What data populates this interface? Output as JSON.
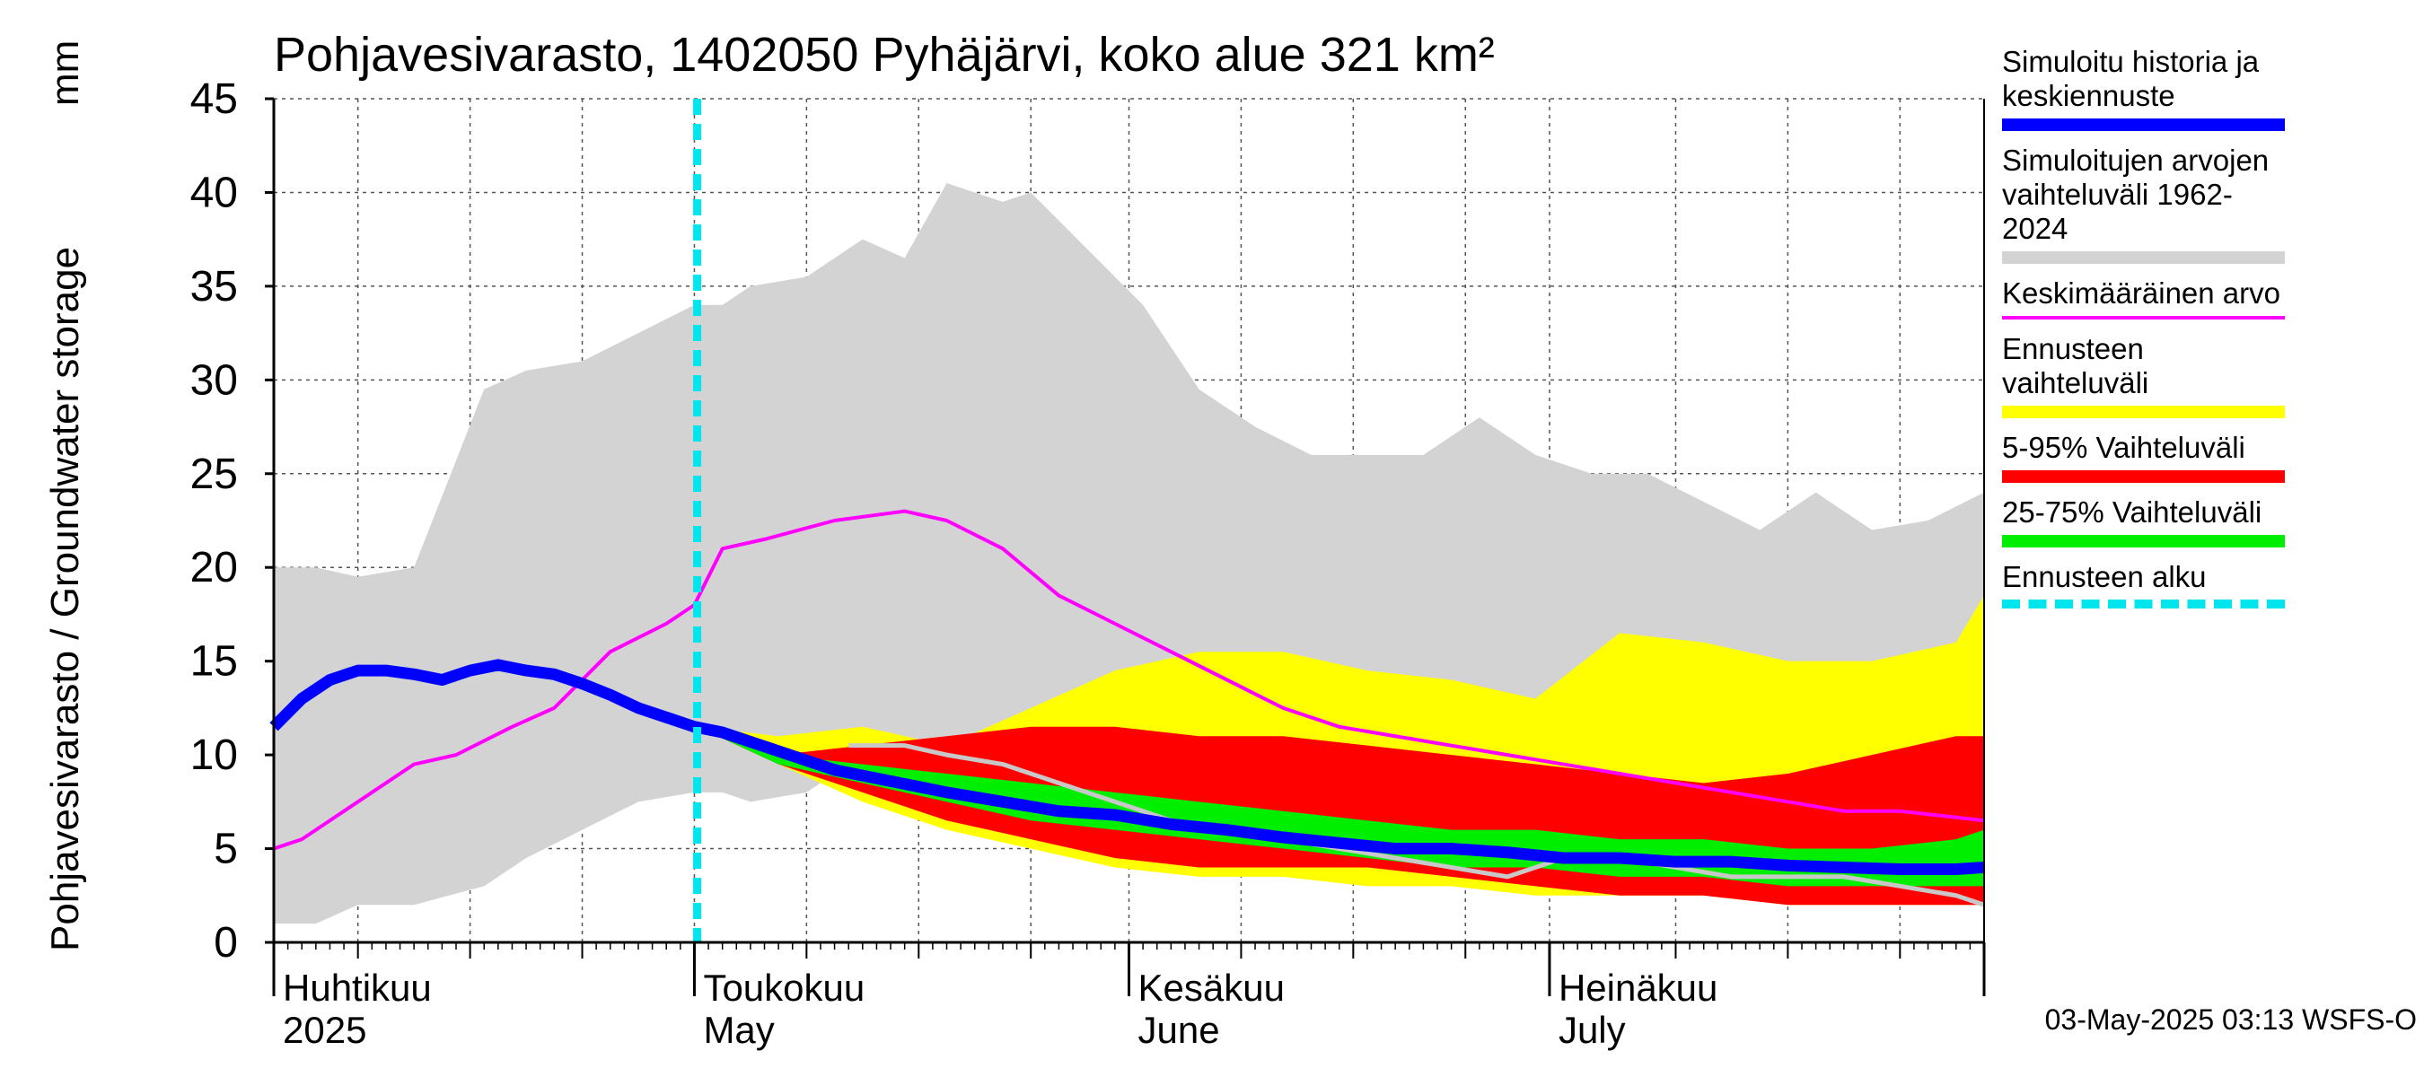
{
  "chart_data": {
    "type": "area",
    "title": "Pohjavesivarasto, 1402050 Pyhäjärvi, koko alue 321 km²",
    "ylabel": "Pohjavesivarasto / Groundwater storage",
    "yunit": "mm",
    "ylim": [
      0,
      45
    ],
    "yticks": [
      0,
      5,
      10,
      15,
      20,
      25,
      30,
      35,
      40,
      45
    ],
    "xlim_days": [
      0,
      122
    ],
    "month_labels": [
      {
        "day": 0,
        "line1": "Huhtikuu",
        "line2": "2025"
      },
      {
        "day": 30,
        "line1": "Toukokuu",
        "line2": "May"
      },
      {
        "day": 61,
        "line1": "Kesäkuu",
        "line2": "June"
      },
      {
        "day": 91,
        "line1": "Heinäkuu",
        "line2": "July"
      }
    ],
    "forecast_start_day": 30.2,
    "series": {
      "history_range": {
        "name": "Simuloitujen arvojen vaihteluväli 1962-2024",
        "color": "#d3d3d3",
        "x": [
          0,
          3,
          6,
          10,
          15,
          18,
          22,
          26,
          30,
          32,
          34,
          38,
          42,
          45,
          48,
          52,
          54,
          58,
          62,
          66,
          70,
          74,
          78,
          82,
          86,
          90,
          94,
          98,
          102,
          106,
          110,
          114,
          118,
          122
        ],
        "upper": [
          20,
          20,
          19.5,
          20,
          29.5,
          30.5,
          31,
          32.5,
          34,
          34,
          35,
          35.5,
          37.5,
          36.5,
          40.5,
          39.5,
          40,
          37,
          34,
          29.5,
          27.5,
          26,
          26,
          26,
          28,
          26,
          25,
          25,
          23.5,
          22,
          24,
          22,
          22.5,
          24
        ],
        "lower": [
          1,
          1,
          2,
          2,
          3,
          4.5,
          6,
          7.5,
          8,
          8,
          7.5,
          8,
          10,
          9.5,
          9.5,
          9,
          8.5,
          7,
          6,
          5.5,
          5.5,
          5,
          4.5,
          4.5,
          4,
          3.5,
          3.5,
          3.5,
          3,
          3,
          2.5,
          2.5,
          2.5,
          2.5
        ]
      },
      "forecast_range": {
        "name": "Ennusteen vaihteluväli",
        "color": "#ffff00",
        "x": [
          30.2,
          36,
          42,
          48,
          54,
          60,
          66,
          72,
          78,
          84,
          90,
          96,
          102,
          108,
          114,
          120,
          122
        ],
        "upper": [
          11.5,
          11,
          11.5,
          10.5,
          12.5,
          14.5,
          15.5,
          15.5,
          14.5,
          14,
          13,
          16.5,
          16,
          15,
          15,
          16,
          18.5
        ],
        "lower": [
          11.5,
          9.5,
          7.5,
          6,
          5,
          4,
          3.5,
          3.5,
          3,
          3,
          2.5,
          2.5,
          2.5,
          2,
          2,
          2,
          2
        ]
      },
      "p5_95": {
        "name": "5-95% Vaihteluväli",
        "color": "#ff0000",
        "x": [
          30.2,
          36,
          42,
          48,
          54,
          60,
          66,
          72,
          78,
          84,
          90,
          96,
          102,
          108,
          114,
          120,
          122
        ],
        "upper": [
          11.5,
          10,
          10.5,
          11,
          11.5,
          11.5,
          11,
          11,
          10.5,
          10,
          9.5,
          9,
          8.5,
          9,
          10,
          11,
          11
        ],
        "lower": [
          11.5,
          9.5,
          8,
          6.5,
          5.5,
          4.5,
          4,
          4,
          4,
          3.5,
          3,
          2.5,
          2.5,
          2,
          2,
          2,
          2
        ]
      },
      "p25_75": {
        "name": "25-75% Vaihteluväli",
        "color": "#00ee00",
        "x": [
          30.2,
          36,
          42,
          48,
          54,
          60,
          66,
          72,
          78,
          84,
          90,
          96,
          102,
          108,
          114,
          120,
          122
        ],
        "upper": [
          11.5,
          10,
          9.5,
          9,
          8.5,
          8,
          7.5,
          7,
          6.5,
          6,
          6,
          5.5,
          5.5,
          5,
          5,
          5.5,
          6
        ],
        "lower": [
          11.5,
          9.5,
          8.5,
          7.5,
          6.5,
          6,
          5.5,
          5,
          4.5,
          4,
          4,
          3.5,
          3.5,
          3,
          3,
          3,
          3
        ]
      },
      "mean": {
        "name": "Keskimääräinen arvo",
        "color": "#ff00ff",
        "x": [
          0,
          2,
          6,
          10,
          13,
          17,
          20,
          24,
          28,
          30,
          32,
          35,
          40,
          45,
          48,
          52,
          56,
          60,
          64,
          68,
          72,
          76,
          80,
          84,
          88,
          92,
          96,
          100,
          104,
          108,
          112,
          116,
          122
        ],
        "y": [
          5,
          5.5,
          7.5,
          9.5,
          10,
          11.5,
          12.5,
          15.5,
          17,
          18,
          21,
          21.5,
          22.5,
          23,
          22.5,
          21,
          18.5,
          17,
          15.5,
          14,
          12.5,
          11.5,
          11,
          10.5,
          10,
          9.5,
          9,
          8.5,
          8,
          7.5,
          7,
          7,
          6.5
        ]
      },
      "median": {
        "name": "Simuloitu historia ja keskiennuste",
        "color": "#0000ff",
        "x": [
          0,
          2,
          4,
          6,
          8,
          10,
          12,
          14,
          16,
          18,
          20,
          22,
          24,
          26,
          28,
          30,
          32,
          36,
          40,
          44,
          48,
          52,
          56,
          60,
          64,
          68,
          72,
          76,
          80,
          84,
          88,
          92,
          96,
          100,
          104,
          108,
          112,
          116,
          120,
          122
        ],
        "y": [
          11.5,
          13,
          14,
          14.5,
          14.5,
          14.3,
          14,
          14.5,
          14.8,
          14.5,
          14.3,
          13.8,
          13.2,
          12.5,
          12,
          11.5,
          11.2,
          10.2,
          9.2,
          8.6,
          8,
          7.5,
          7,
          6.8,
          6.3,
          6,
          5.6,
          5.3,
          5,
          5,
          4.8,
          4.5,
          4.5,
          4.3,
          4.3,
          4.1,
          4,
          3.9,
          3.9,
          4
        ]
      },
      "ensemble_trace": {
        "color": "#c8c8c8",
        "x": [
          41,
          45,
          48,
          52,
          56,
          60,
          64,
          68,
          72,
          76,
          80,
          84,
          88,
          92,
          96,
          100,
          104,
          108,
          112,
          116,
          120,
          122
        ],
        "y": [
          10.5,
          10.5,
          10,
          9.5,
          8.5,
          7.5,
          6.5,
          6,
          5.5,
          5,
          4.5,
          4,
          3.5,
          4.5,
          4.5,
          4,
          3.5,
          3.5,
          3.5,
          3,
          2.5,
          2
        ]
      }
    }
  },
  "legend": [
    {
      "text": "Simuloitu historia ja keskiennuste",
      "color": "#0000ff",
      "style": "solid"
    },
    {
      "text": "Simuloitujen arvojen vaihteluväli 1962-2024",
      "color": "#d3d3d3",
      "style": "solid"
    },
    {
      "text": "Keskimääräinen arvo",
      "color": "#ff00ff",
      "style": "thin"
    },
    {
      "text": "Ennusteen vaihteluväli",
      "color": "#ffff00",
      "style": "solid"
    },
    {
      "text": "5-95% Vaihteluväli",
      "color": "#ff0000",
      "style": "solid"
    },
    {
      "text": "25-75% Vaihteluväli",
      "color": "#00ee00",
      "style": "solid"
    },
    {
      "text": "Ennusteen alku",
      "color": "#00e5ee",
      "style": "dashed"
    }
  ],
  "footer": "03-May-2025 03:13 WSFS-O"
}
